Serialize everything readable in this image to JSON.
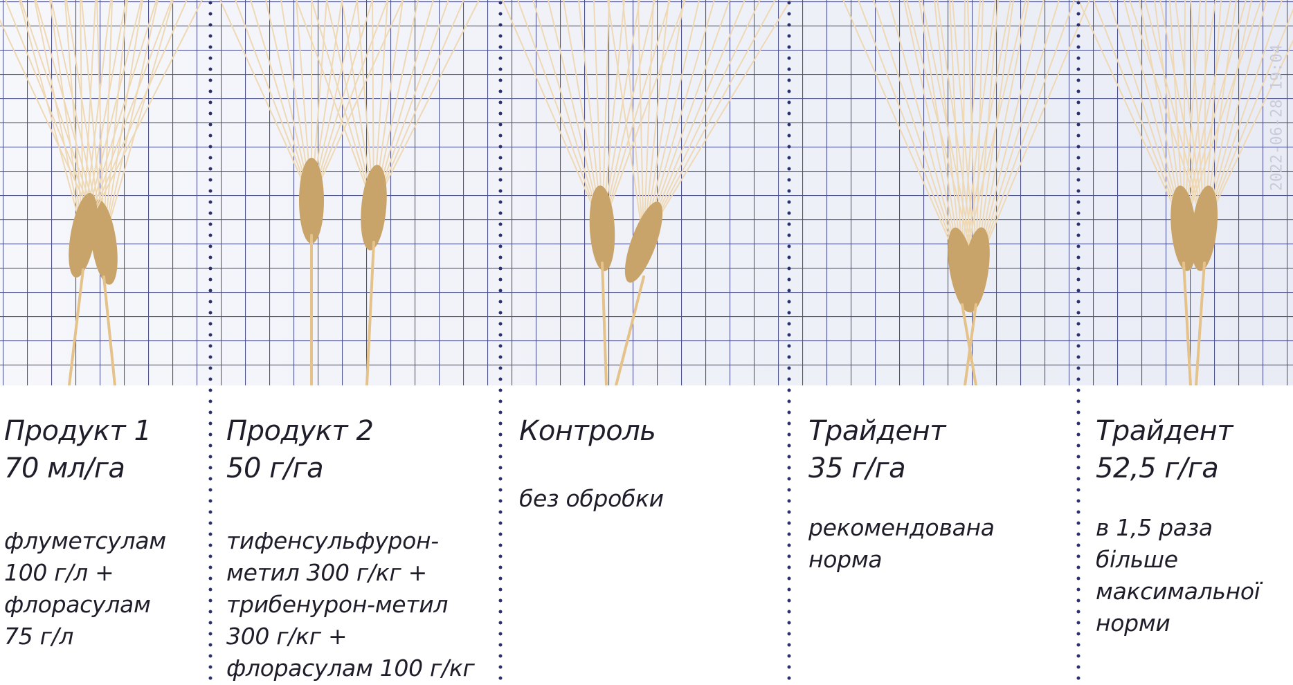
{
  "columns": [
    {
      "title": [
        "Продукт 1",
        "70 мл/га"
      ],
      "description": [
        "флуметсулам",
        "100 г/л +",
        "флорасулам",
        "75 г/л"
      ]
    },
    {
      "title": [
        "Продукт 2",
        "50 г/га"
      ],
      "description": [
        "тифенсульфурон-",
        "метил 300 г/кг +",
        "трибенурон-метил",
        "300 г/кг +",
        "флорасулам 100 г/кг"
      ]
    },
    {
      "title": [
        "Контроль"
      ],
      "description": [
        "без обробки"
      ]
    },
    {
      "title": [
        "Трайдент",
        "35 г/га"
      ],
      "description": [
        "рекомендована",
        "норма"
      ]
    },
    {
      "title": [
        "Трайдент",
        "52,5 г/га"
      ],
      "description": [
        "в 1,5 раза",
        "більше",
        "максимальної",
        "норми"
      ]
    }
  ],
  "timestamp": "2022-06-28 19:04"
}
